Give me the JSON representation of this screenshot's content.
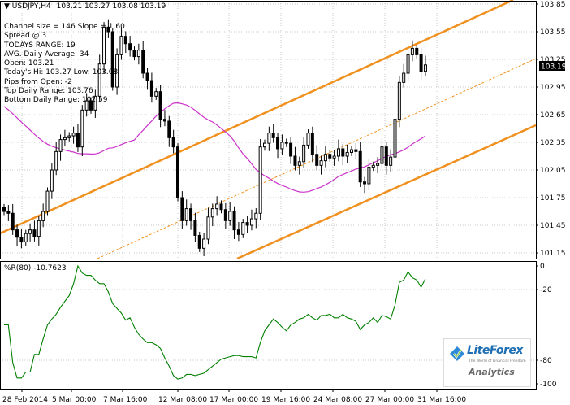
{
  "header": {
    "symbol": "USDJPY,H4",
    "ohlc": "103.21 103.27 103.08 103.19"
  },
  "info_lines": [
    "Channel size = 146 Slope = 1.60",
    "Spread @ 3",
    "TODAYS RANGE: 19",
    "AVG. Daily Average: 34",
    "Open: 103.21",
    "Today's Hi: 103.27  Low: 103.08",
    "Pips from Open: -2",
    "Top Daily Range: 103.76",
    "Bottom Daily Range: 102.59"
  ],
  "price_label": "103.19",
  "indicator_label": "%R(80) -10.7623",
  "logo": {
    "name": "LiteForex",
    "tagline": "The World of Financial Freedom",
    "sub": "Analytics"
  },
  "colors": {
    "candle": "#000000",
    "channel": "#f0901e",
    "moving_average": "#cc33cc",
    "williams_r": "#008000",
    "grid": "#c8c8c8"
  },
  "chart_data": {
    "type": "candlestick",
    "instrument": "USDJPY",
    "timeframe": "H4",
    "y_ticks_price": [
      "103.85",
      "103.55",
      "103.25",
      "102.95",
      "102.65",
      "102.35",
      "102.05",
      "101.75",
      "101.45",
      "101.15"
    ],
    "y_ticks_indicator": [
      "0",
      "-20",
      "-80",
      "-100"
    ],
    "x_tick_labels": [
      "28 Feb 2014",
      "5 Mar 00:00",
      "7 Mar 16:00",
      "12 Mar 08:00",
      "17 Mar 00:00",
      "19 Mar 16:00",
      "24 Mar 08:00",
      "27 Mar 00:00",
      "31 Mar 16:00"
    ],
    "close": [
      101.6,
      101.58,
      101.4,
      101.32,
      101.27,
      101.36,
      101.4,
      101.33,
      101.5,
      101.6,
      101.82,
      102.05,
      102.25,
      102.38,
      102.4,
      102.42,
      102.45,
      102.3,
      102.7,
      102.8,
      102.7,
      102.85,
      103.2,
      103.6,
      103.55,
      102.95,
      103.3,
      103.5,
      103.42,
      103.35,
      103.28,
      103.35,
      103.1,
      103.02,
      102.85,
      102.9,
      102.6,
      102.58,
      102.4,
      102.3,
      101.75,
      101.5,
      101.63,
      101.5,
      101.34,
      101.2,
      101.3,
      101.54,
      101.63,
      101.68,
      101.62,
      101.5,
      101.6,
      101.4,
      101.35,
      101.48,
      101.45,
      101.52,
      101.58,
      102.3,
      102.34,
      102.45,
      102.4,
      102.28,
      102.35,
      102.34,
      102.2,
      102.1,
      102.14,
      102.32,
      102.45,
      102.22,
      102.1,
      102.15,
      102.22,
      102.18,
      102.2,
      102.28,
      102.2,
      102.24,
      102.27,
      102.25,
      101.92,
      101.9,
      102.08,
      102.1,
      102.12,
      102.3,
      102.1,
      102.19,
      102.6,
      103.0,
      103.1,
      103.3,
      103.37,
      103.3,
      103.12,
      103.19
    ],
    "bottom_daily_range": 102.59,
    "top_daily_range": 103.76,
    "williams_r": [
      -50,
      -50,
      -82,
      -95,
      -95,
      -90,
      -90,
      -75,
      -75,
      -62,
      -50,
      -45,
      -41,
      -35,
      -30,
      -25,
      -15,
      0,
      -6,
      -8,
      -8,
      -12,
      -15,
      -15,
      -22,
      -32,
      -36,
      -40,
      -46,
      -44,
      -52,
      -58,
      -62,
      -65,
      -65,
      -67,
      -70,
      -78,
      -85,
      -93,
      -96,
      -95,
      -92,
      -92,
      -93,
      -92,
      -91,
      -88,
      -85,
      -82,
      -79,
      -78,
      -77,
      -76,
      -76,
      -77,
      -77,
      -77,
      -78,
      -65,
      -55,
      -50,
      -45,
      -48,
      -52,
      -55,
      -50,
      -48,
      -45,
      -44,
      -41,
      -44,
      -46,
      -42,
      -42,
      -41,
      -44,
      -44,
      -41,
      -44,
      -45,
      -47,
      -54,
      -50,
      -48,
      -44,
      -48,
      -42,
      -43,
      -45,
      -33,
      -14,
      -12,
      -5,
      -10,
      -12,
      -18,
      -11
    ],
    "williams_r_last": -10.7623,
    "current_price": 103.19
  }
}
